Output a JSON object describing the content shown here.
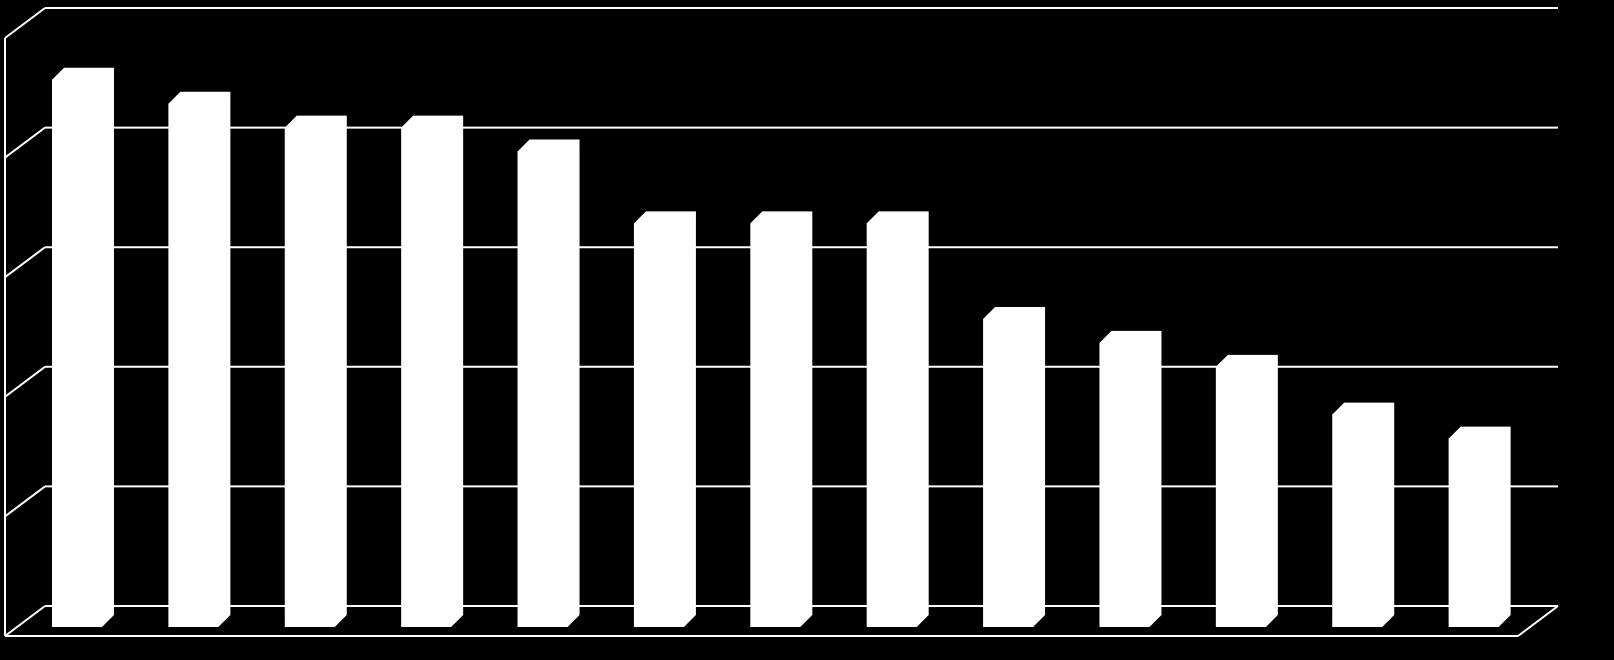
{
  "chart_data": {
    "type": "bar3d",
    "categories": [
      null,
      null,
      null,
      null,
      null,
      null,
      null,
      null,
      null,
      null,
      null,
      null,
      null
    ],
    "values": [
      4.5,
      4.3,
      4.1,
      4.1,
      3.9,
      3.3,
      3.3,
      3.3,
      2.5,
      2.3,
      2.1,
      1.7,
      1.5
    ],
    "color": "#ffffff",
    "ylim": [
      0,
      5
    ],
    "yticks": [
      0,
      1,
      2,
      3,
      4,
      5
    ],
    "grid": true
  }
}
